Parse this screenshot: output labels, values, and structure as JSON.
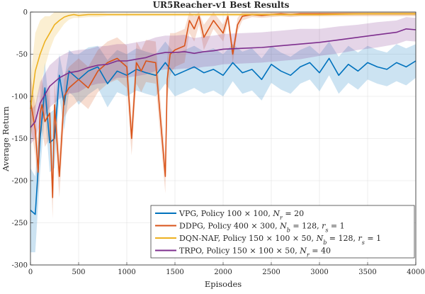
{
  "chart_data": {
    "type": "line",
    "title": "UR5Reacher-v1 Best Results",
    "xlabel": "Episodes",
    "ylabel": "Average Return",
    "xlim": [
      0,
      4000
    ],
    "ylim": [
      -300,
      0
    ],
    "xticks": [
      0,
      500,
      1000,
      1500,
      2000,
      2500,
      3000,
      3500,
      4000
    ],
    "yticks": [
      0,
      -50,
      -100,
      -150,
      -200,
      -250,
      -300
    ],
    "grid": true,
    "legend_position": "bottom-right",
    "series": [
      {
        "name": "VPG",
        "legend": "VPG, Policy 100 × 100, Nr = 20",
        "legend_parts": [
          {
            "t": "VPG, Policy 100 × 100, "
          },
          {
            "t": "N",
            "i": true
          },
          {
            "t": "r",
            "sub": true
          },
          {
            "t": " = 20"
          }
        ],
        "color": "#0072BD",
        "x": [
          0,
          50,
          100,
          150,
          200,
          250,
          300,
          350,
          400,
          450,
          500,
          600,
          700,
          800,
          900,
          1000,
          1100,
          1200,
          1300,
          1400,
          1500,
          1600,
          1700,
          1800,
          1900,
          2000,
          2100,
          2200,
          2300,
          2400,
          2500,
          2600,
          2700,
          2800,
          2900,
          3000,
          3100,
          3200,
          3300,
          3400,
          3500,
          3600,
          3700,
          3800,
          3900,
          4000
        ],
        "y": [
          -235,
          -240,
          -150,
          -90,
          -155,
          -150,
          -75,
          -110,
          -70,
          -75,
          -80,
          -70,
          -65,
          -85,
          -70,
          -75,
          -68,
          -72,
          -75,
          -60,
          -75,
          -70,
          -65,
          -72,
          -68,
          -75,
          -60,
          -72,
          -68,
          -80,
          -62,
          -70,
          -75,
          -65,
          -60,
          -72,
          -55,
          -75,
          -62,
          -70,
          -60,
          -65,
          -68,
          -60,
          -65,
          -58
        ],
        "band": [
          50,
          45,
          40,
          30,
          35,
          35,
          25,
          30,
          25,
          25,
          30,
          28,
          25,
          28,
          25,
          25,
          25,
          25,
          25,
          25,
          25,
          25,
          25,
          25,
          25,
          25,
          22,
          25,
          25,
          25,
          22,
          22,
          22,
          20,
          20,
          22,
          20,
          22,
          22,
          22,
          20,
          20,
          20,
          22,
          22,
          20
        ]
      },
      {
        "name": "DDPG",
        "legend": "DDPG, Policy 400 × 300, Nb = 128, rs = 1",
        "legend_parts": [
          {
            "t": "DDPG, Policy 400 × 300, "
          },
          {
            "t": "N",
            "i": true
          },
          {
            "t": "b",
            "sub": true
          },
          {
            "t": " = 128, "
          },
          {
            "t": "r",
            "i": true
          },
          {
            "t": "s",
            "sub": true
          },
          {
            "t": " = 1"
          }
        ],
        "color": "#D95319",
        "x": [
          0,
          50,
          80,
          100,
          120,
          150,
          200,
          230,
          250,
          300,
          350,
          400,
          450,
          500,
          600,
          700,
          800,
          900,
          1000,
          1050,
          1100,
          1150,
          1200,
          1300,
          1400,
          1420,
          1450,
          1500,
          1600,
          1650,
          1700,
          1750,
          1800,
          1900,
          2000,
          2050,
          2100,
          2150,
          2200,
          2300,
          2400,
          2500,
          2600,
          2700,
          2800,
          3000,
          3200,
          3400,
          3600,
          3800,
          4000
        ],
        "y": [
          -105,
          -140,
          -190,
          -120,
          -110,
          -130,
          -120,
          -220,
          -110,
          -195,
          -100,
          -90,
          -85,
          -80,
          -90,
          -70,
          -60,
          -55,
          -65,
          -150,
          -60,
          -70,
          -58,
          -60,
          -195,
          -80,
          -50,
          -45,
          -40,
          -10,
          -20,
          -5,
          -30,
          -10,
          -25,
          -5,
          -50,
          -15,
          -5,
          -3,
          -4,
          -3,
          -2,
          -3,
          -2,
          -2,
          -2,
          -2,
          -2,
          -2,
          -2
        ],
        "band": [
          30,
          30,
          25,
          30,
          30,
          30,
          30,
          25,
          30,
          25,
          25,
          25,
          25,
          25,
          25,
          25,
          25,
          25,
          25,
          20,
          25,
          25,
          25,
          25,
          20,
          25,
          25,
          20,
          20,
          15,
          15,
          10,
          15,
          10,
          10,
          8,
          10,
          8,
          5,
          3,
          3,
          3,
          3,
          3,
          3,
          3,
          3,
          3,
          3,
          3,
          3
        ]
      },
      {
        "name": "DQN-NAF",
        "legend": "DQN-NAF, Policy 150 × 100 × 50, Nb = 128, rs = 1",
        "legend_parts": [
          {
            "t": "DQN-NAF, Policy 150 × 100 × 50, "
          },
          {
            "t": "N",
            "i": true
          },
          {
            "t": "b",
            "sub": true
          },
          {
            "t": " = 128, "
          },
          {
            "t": "r",
            "i": true
          },
          {
            "t": "s",
            "sub": true
          },
          {
            "t": " = 1"
          }
        ],
        "color": "#EDB120",
        "x": [
          0,
          50,
          100,
          150,
          200,
          250,
          300,
          350,
          400,
          450,
          500,
          600,
          700,
          800,
          1000,
          1500,
          2000,
          2500,
          3000,
          3500,
          4000
        ],
        "y": [
          -115,
          -70,
          -50,
          -35,
          -25,
          -15,
          -10,
          -6,
          -4,
          -3,
          -4,
          -3,
          -3,
          -3,
          -3,
          -3,
          -3,
          -3,
          -3,
          -2,
          -2
        ],
        "band": [
          35,
          45,
          40,
          30,
          20,
          15,
          12,
          8,
          5,
          4,
          3,
          3,
          3,
          2,
          2,
          2,
          2,
          2,
          2,
          2,
          2
        ]
      },
      {
        "name": "TRPO",
        "legend": "TRPO, Policy 150 × 100 × 50, Nr = 40",
        "legend_parts": [
          {
            "t": "TRPO, Policy 150 × 100 × 50, "
          },
          {
            "t": "N",
            "i": true
          },
          {
            "t": "r",
            "sub": true
          },
          {
            "t": " = 40"
          }
        ],
        "color": "#7E2F8E",
        "x": [
          0,
          50,
          100,
          150,
          200,
          300,
          400,
          500,
          600,
          700,
          800,
          900,
          1000,
          1100,
          1200,
          1300,
          1400,
          1500,
          1600,
          1700,
          1800,
          1900,
          2000,
          2200,
          2400,
          2600,
          2800,
          3000,
          3200,
          3400,
          3600,
          3800,
          3900,
          4000
        ],
        "y": [
          -137,
          -130,
          -108,
          -98,
          -88,
          -78,
          -72,
          -70,
          -66,
          -63,
          -62,
          -58,
          -58,
          -56,
          -54,
          -50,
          -48,
          -48,
          -47,
          -49,
          -47,
          -46,
          -44,
          -43,
          -42,
          -40,
          -38,
          -36,
          -33,
          -30,
          -27,
          -24,
          -20,
          -21
        ],
        "band": [
          20,
          20,
          25,
          25,
          25,
          25,
          25,
          25,
          22,
          22,
          22,
          20,
          20,
          20,
          20,
          20,
          20,
          20,
          20,
          18,
          18,
          18,
          18,
          18,
          18,
          18,
          18,
          16,
          16,
          15,
          15,
          14,
          14,
          14
        ]
      }
    ]
  }
}
